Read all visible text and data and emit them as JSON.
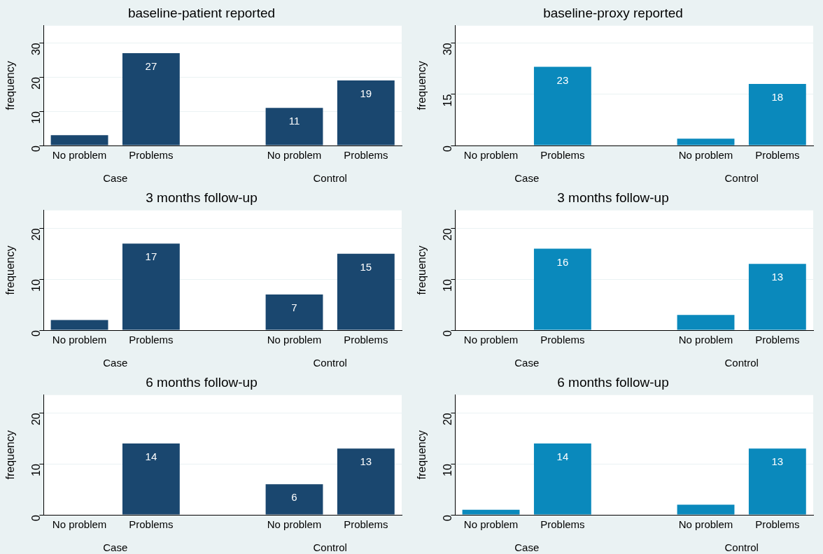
{
  "chart_data": [
    {
      "type": "bar",
      "title": "baseline-patient reported",
      "ylabel": "frequency",
      "categories": [
        "No problem",
        "Problems",
        null,
        "No problem",
        "Problems"
      ],
      "values": [
        3,
        27,
        null,
        11,
        19
      ],
      "value_labels": [
        null,
        "27",
        null,
        "11",
        "19"
      ],
      "color": "#1a476f",
      "ylim": [
        0,
        35
      ],
      "yticks": [
        0,
        10,
        20,
        30
      ],
      "grid": "y",
      "annotations": [
        "Case",
        "Control"
      ]
    },
    {
      "type": "bar",
      "title": "baseline-proxy reported",
      "ylabel": "frequency",
      "categories": [
        "No problem",
        "Problems",
        null,
        "No problem",
        "Problems"
      ],
      "values": [
        0,
        23,
        null,
        2,
        18
      ],
      "value_labels": [
        null,
        "23",
        null,
        null,
        "18"
      ],
      "color": "#0a89bc",
      "ylim": [
        0,
        35
      ],
      "yticks": [
        0,
        15,
        30
      ],
      "grid": "y",
      "annotations": [
        "Case",
        "Control"
      ]
    },
    {
      "type": "bar",
      "title": "3 months follow-up",
      "ylabel": "frequency",
      "categories": [
        "No problem",
        "Problems",
        null,
        "No problem",
        "Problems"
      ],
      "values": [
        2,
        17,
        null,
        7,
        15
      ],
      "value_labels": [
        null,
        "17",
        null,
        "7",
        "15"
      ],
      "color": "#1a476f",
      "ylim": [
        0,
        23.5
      ],
      "yticks": [
        0,
        10,
        20
      ],
      "grid": "y",
      "annotations": [
        "Case",
        "Control"
      ]
    },
    {
      "type": "bar",
      "title": "3 months follow-up",
      "ylabel": "frequency",
      "categories": [
        "No problem",
        "Problems",
        null,
        "No problem",
        "Problems"
      ],
      "values": [
        0,
        16,
        null,
        3,
        13
      ],
      "value_labels": [
        null,
        "16",
        null,
        null,
        "13"
      ],
      "color": "#0a89bc",
      "ylim": [
        0,
        23.5
      ],
      "yticks": [
        0,
        10,
        20
      ],
      "grid": "y",
      "annotations": [
        "Case",
        "Control"
      ]
    },
    {
      "type": "bar",
      "title": "6 months follow-up",
      "ylabel": "frequency",
      "categories": [
        "No problem",
        "Problems",
        null,
        "No problem",
        "Problems"
      ],
      "values": [
        0,
        14,
        null,
        6,
        13
      ],
      "value_labels": [
        null,
        "14",
        null,
        "6",
        "13"
      ],
      "color": "#1a476f",
      "ylim": [
        0,
        23.5
      ],
      "yticks": [
        0,
        10,
        20
      ],
      "grid": "y",
      "annotations": [
        "Case",
        "Control"
      ]
    },
    {
      "type": "bar",
      "title": "6 months follow-up",
      "ylabel": "frequency",
      "categories": [
        "No problem",
        "Problems",
        null,
        "No problem",
        "Problems"
      ],
      "values": [
        1,
        14,
        null,
        2,
        13
      ],
      "value_labels": [
        null,
        "14",
        null,
        null,
        "13"
      ],
      "color": "#0a89bc",
      "ylim": [
        0,
        23.5
      ],
      "yticks": [
        0,
        10,
        20
      ],
      "grid": "y",
      "annotations": [
        "Case",
        "Control"
      ]
    }
  ]
}
